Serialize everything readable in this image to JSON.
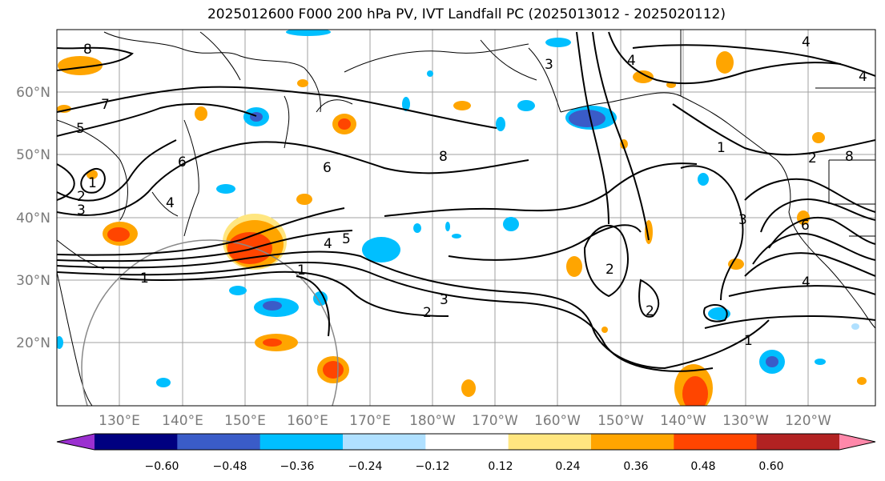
{
  "title": "2025012600 F000 200 hPa PV, IVT Landfall PC (2025013012 - 2025020112)",
  "map": {
    "projection": "cylindrical",
    "lon_range": [
      120,
      251
    ],
    "lat_range": [
      10,
      70
    ],
    "lat_ticks": [
      "20°N",
      "30°N",
      "40°N",
      "50°N",
      "60°N"
    ],
    "lon_ticks": [
      "130°E",
      "140°E",
      "150°E",
      "160°E",
      "170°E",
      "180°W",
      "170°W",
      "160°W",
      "150°W",
      "140°W",
      "130°W",
      "120°W"
    ],
    "grid": true,
    "contour_color": "#000000",
    "contour_labels": [
      "8",
      "7",
      "5",
      "1",
      "2",
      "3",
      "4",
      "4",
      "6",
      "8",
      "6",
      "4",
      "5",
      "1",
      "2",
      "3",
      "4",
      "2",
      "2",
      "1",
      "1",
      "2",
      "3",
      "4",
      "6",
      "3",
      "1",
      "4",
      "8"
    ]
  },
  "colorbar": {
    "colors": [
      "#9b30d0",
      "#000080",
      "#3a5cc8",
      "#00bfff",
      "#b0e0ff",
      "#ffffff",
      "#ffe680",
      "#ffa500",
      "#ff4500",
      "#b22222",
      "#ff88aa"
    ],
    "tick_labels": [
      "−0.60",
      "−0.48",
      "−0.36",
      "−0.24",
      "−0.12",
      "0.12",
      "0.24",
      "0.36",
      "0.48",
      "0.60"
    ]
  }
}
